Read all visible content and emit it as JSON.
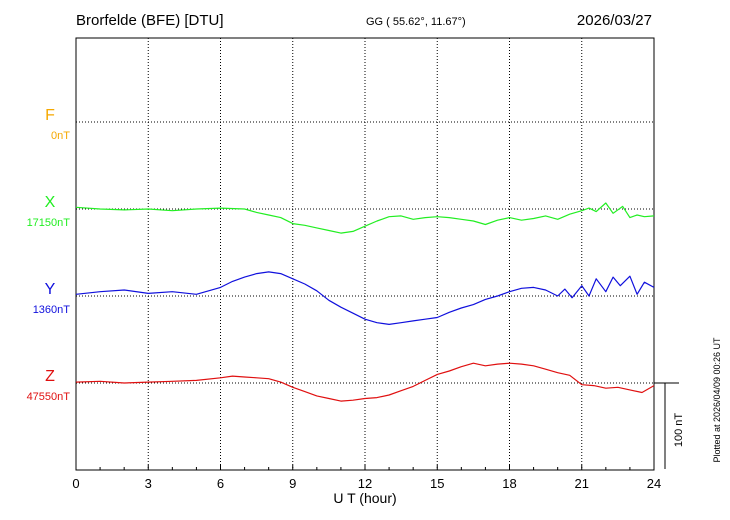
{
  "header": {
    "station": "Brorfelde (BFE)  [DTU]",
    "coords": "GG ( 55.62°,  11.67°)",
    "date": "2026/03/27"
  },
  "side_note": "Plotted at 2026/04/09 00:26 UT",
  "chart_data": {
    "type": "line",
    "xlabel": "U T (hour)",
    "xlim": [
      0,
      24
    ],
    "xticks": [
      "0",
      "3",
      "6",
      "9",
      "12",
      "15",
      "18",
      "21",
      "24"
    ],
    "scale_bar": {
      "label": "100 nT",
      "value_nT": 100
    },
    "grid": true,
    "series": [
      {
        "name": "F",
        "baseline_label": "0nT",
        "color": "#f5a800",
        "baseline_nT": 0,
        "x": [],
        "values": []
      },
      {
        "name": "X",
        "baseline_label": "17150nT",
        "color": "#22ee22",
        "baseline_nT": 17150,
        "x": [
          0,
          1,
          2,
          3,
          4,
          5,
          6,
          7,
          7.5,
          8,
          8.5,
          9,
          9.5,
          10,
          10.5,
          11,
          11.5,
          12,
          12.5,
          13,
          13.5,
          14,
          14.5,
          15,
          15.5,
          16,
          16.5,
          17,
          17.5,
          18,
          18.5,
          19,
          19.5,
          20,
          20.5,
          21,
          21.3,
          21.6,
          22,
          22.3,
          22.7,
          23,
          23.3,
          23.6,
          24
        ],
        "values": [
          17152,
          17150,
          17149,
          17150,
          17148,
          17150,
          17151,
          17150,
          17146,
          17143,
          17140,
          17133,
          17131,
          17128,
          17125,
          17122,
          17124,
          17130,
          17136,
          17141,
          17142,
          17138,
          17140,
          17141,
          17140,
          17138,
          17136,
          17132,
          17137,
          17140,
          17137,
          17139,
          17142,
          17138,
          17144,
          17148,
          17151,
          17147,
          17157,
          17145,
          17153,
          17140,
          17143,
          17141,
          17142
        ]
      },
      {
        "name": "Y",
        "baseline_label": "1360nT",
        "color": "#1010dd",
        "baseline_nT": 1360,
        "x": [
          0,
          1,
          2,
          3,
          4,
          5,
          6,
          6.5,
          7,
          7.5,
          8,
          8.5,
          9,
          9.5,
          10,
          10.5,
          11,
          11.5,
          12,
          12.5,
          13,
          13.5,
          14,
          14.5,
          15,
          15.5,
          16,
          16.5,
          17,
          17.5,
          18,
          18.5,
          19,
          19.5,
          20,
          20.3,
          20.6,
          21,
          21.3,
          21.6,
          22,
          22.3,
          22.6,
          23,
          23.3,
          23.6,
          24
        ],
        "values": [
          1362,
          1365,
          1367,
          1363,
          1365,
          1362,
          1370,
          1377,
          1382,
          1386,
          1388,
          1386,
          1380,
          1374,
          1366,
          1355,
          1347,
          1340,
          1333,
          1329,
          1327,
          1329,
          1331,
          1333,
          1335,
          1341,
          1346,
          1350,
          1356,
          1360,
          1365,
          1369,
          1370,
          1367,
          1360,
          1368,
          1358,
          1372,
          1360,
          1380,
          1365,
          1382,
          1372,
          1383,
          1362,
          1376,
          1370
        ]
      },
      {
        "name": "Z",
        "baseline_label": "47550nT",
        "color": "#e01010",
        "baseline_nT": 47550,
        "x": [
          0,
          1,
          2,
          3,
          4,
          5,
          6,
          6.5,
          7,
          7.5,
          8,
          8.5,
          9,
          9.5,
          10,
          10.5,
          11,
          11.5,
          12,
          12.5,
          13,
          13.5,
          14,
          14.5,
          15,
          15.5,
          16,
          16.5,
          17,
          17.5,
          18,
          18.5,
          19,
          19.5,
          20,
          20.5,
          21,
          21.5,
          22,
          22.5,
          23,
          23.5,
          24
        ],
        "values": [
          47551,
          47552,
          47550,
          47551,
          47552,
          47553,
          47556,
          47558,
          47557,
          47556,
          47555,
          47551,
          47545,
          47540,
          47535,
          47532,
          47529,
          47530,
          47532,
          47533,
          47536,
          47541,
          47546,
          47553,
          47560,
          47564,
          47569,
          47573,
          47570,
          47572,
          47573,
          47572,
          47570,
          47566,
          47562,
          47559,
          47548,
          47547,
          47544,
          47545,
          47542,
          47539,
          47547
        ]
      }
    ]
  }
}
